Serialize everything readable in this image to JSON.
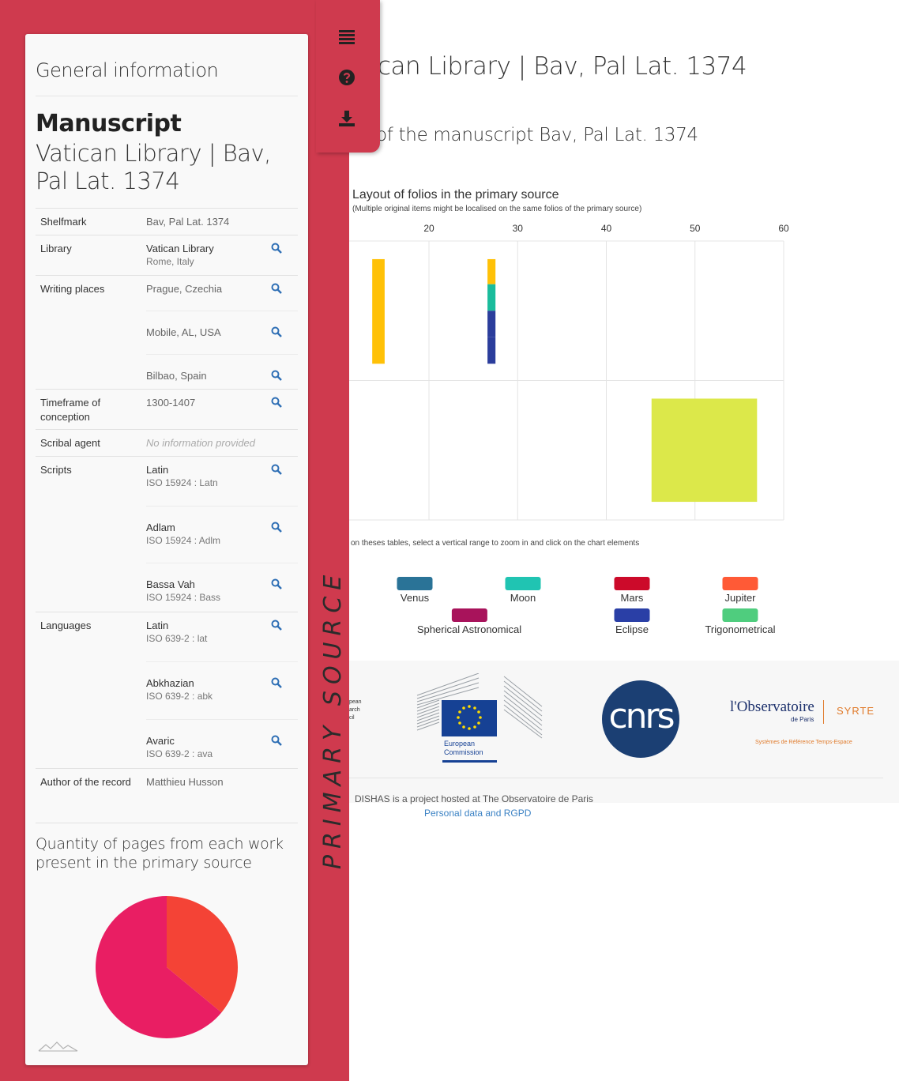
{
  "main": {
    "title": "can Library | Bav, Pal Lat. 1374",
    "subtitle": "of the manuscript Bav, Pal Lat. 1374"
  },
  "toolbar": {
    "list_icon": "list-icon",
    "help_icon": "question-circle-icon",
    "download_icon": "download-icon"
  },
  "sidebar": {
    "vertical_label": "PRIMARY SOURCE",
    "heading": "General information",
    "manuscript_type": "Manuscript",
    "manuscript_title": "Vatican Library | Bav, Pal Lat. 1374",
    "rows": {
      "shelfmark": {
        "label": "Shelfmark",
        "value": "Bav, Pal Lat. 1374"
      },
      "library": {
        "label": "Library",
        "value": "Vatican Library",
        "sub": "Rome, Italy"
      },
      "writing_places": {
        "label": "Writing places",
        "values": [
          "Prague, Czechia",
          "Mobile, AL, USA",
          "Bilbao, Spain"
        ]
      },
      "timeframe": {
        "label": "Timeframe of conception",
        "value": "1300-1407"
      },
      "scribal_agent": {
        "label": "Scribal agent",
        "value": "No information provided"
      },
      "scripts": {
        "label": "Scripts",
        "items": [
          {
            "name": "Latin",
            "code": "ISO 15924 : Latn"
          },
          {
            "name": "Adlam",
            "code": "ISO 15924 : Adlm"
          },
          {
            "name": "Bassa Vah",
            "code": "ISO 15924 : Bass"
          }
        ]
      },
      "languages": {
        "label": "Languages",
        "items": [
          {
            "name": "Latin",
            "code": "ISO 639-2 : lat"
          },
          {
            "name": "Abkhazian",
            "code": "ISO 639-2 : abk"
          },
          {
            "name": "Avaric",
            "code": "ISO 639-2 : ava"
          }
        ]
      },
      "author": {
        "label": "Author of the record",
        "value": "Matthieu Husson"
      }
    },
    "pie_title": "Quantity of pages from each work present in the primary source",
    "pie_data": {
      "type": "pie",
      "slices": [
        {
          "value": 36,
          "color": "#f44336"
        },
        {
          "value": 64,
          "color": "#e91e63"
        }
      ]
    }
  },
  "chart": {
    "title": "Layout of folios in the primary source",
    "subtitle": "(Multiple original items might be localised on the same folios of the primary source)",
    "hint": "on theses tables, select a vertical range to zoom in and click on the chart elements"
  },
  "chart_data": {
    "type": "bar",
    "x_ticks": [
      20,
      30,
      40,
      50,
      60
    ],
    "xlim": [
      11,
      60
    ],
    "grid": true,
    "rows": 2,
    "segments": [
      {
        "row": 0,
        "x0": 13.6,
        "x1": 15.0,
        "y0": 0.13,
        "y1": 0.88,
        "color": "#ffc107"
      },
      {
        "row": 0,
        "x0": 26.6,
        "x1": 27.5,
        "y0": 0.13,
        "y1": 0.31,
        "color": "#ffc107"
      },
      {
        "row": 0,
        "x0": 26.6,
        "x1": 27.5,
        "y0": 0.31,
        "y1": 0.5,
        "color": "#1abc9c"
      },
      {
        "row": 0,
        "x0": 26.6,
        "x1": 27.5,
        "y0": 0.5,
        "y1": 0.69,
        "color": "#2b3d9c"
      },
      {
        "row": 0,
        "x0": 26.6,
        "x1": 27.5,
        "y0": 0.69,
        "y1": 0.88,
        "color": "#2b3d9c"
      },
      {
        "row": 1,
        "x0": 45.1,
        "x1": 57.0,
        "y0": 0.13,
        "y1": 0.87,
        "color": "#dce84a"
      }
    ],
    "legend": [
      {
        "name": "Venus",
        "color": "#2a7397"
      },
      {
        "name": "Moon",
        "color": "#20c4b2"
      },
      {
        "name": "Mars",
        "color": "#cc0a2a"
      },
      {
        "name": "Jupiter",
        "color": "#ff5a36"
      },
      {
        "name": "Spherical Astronomical",
        "color": "#a8135b"
      },
      {
        "name": "Eclipse",
        "color": "#2a3fa6"
      },
      {
        "name": "Trigonometrical",
        "color": "#4fcd7e"
      }
    ]
  },
  "footer": {
    "erc_text": "pean\narch\ncil",
    "ec_text": "European\nCommission",
    "cnrs_text": "cnrs",
    "obs_main": "l'Observatoire",
    "obs_sub": "de Paris",
    "obs_syrte": "SYRTE",
    "obs_ref": "Systèmes de Référence Temps-Espace",
    "hosted": "DISHAS is a project hosted at The Observatoire de Paris",
    "privacy_link": "Personal data and RGPD"
  }
}
